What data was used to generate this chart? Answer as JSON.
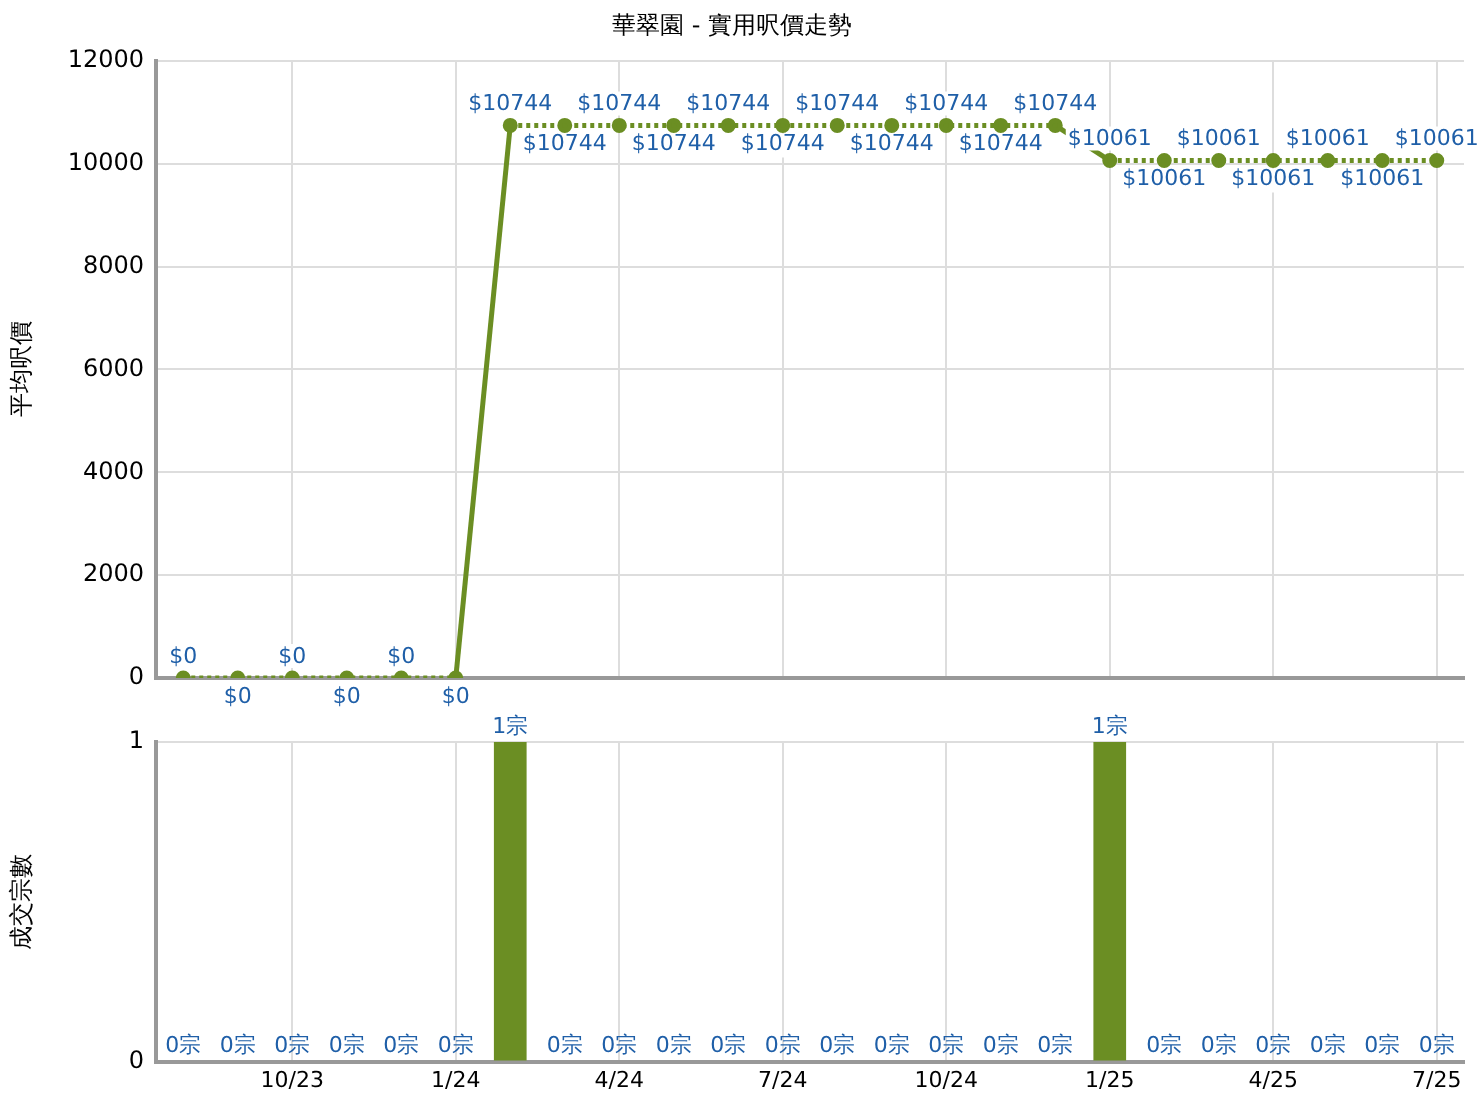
{
  "chart_data": [
    {
      "type": "line",
      "title": "華翠園 - 實用呎價走勢",
      "ylabel": "平均呎價",
      "categories": [
        null,
        null,
        null,
        null,
        null,
        null,
        null,
        null,
        null,
        null,
        null,
        null,
        null,
        null,
        null,
        null,
        null,
        null,
        null,
        null,
        null,
        null,
        null,
        null
      ],
      "series": [
        {
          "color": "#6b8e23",
          "values": [
            0,
            0,
            0,
            0,
            0,
            0,
            10744,
            10744,
            10744,
            10744,
            10744,
            10744,
            10744,
            10744,
            10744,
            10744,
            10744,
            10061,
            10061,
            10061,
            10061,
            10061,
            10061,
            10061
          ],
          "value_labels": [
            "$0",
            "$0",
            "$0",
            "$0",
            "$0",
            "$0",
            "$10744",
            "$10744",
            "$10744",
            "$10744",
            "$10744",
            "$10744",
            "$10744",
            "$10744",
            "$10744",
            "$10744",
            "$10744",
            "$10061",
            "$10061",
            "$10061",
            "$10061",
            "$10061",
            "$10061",
            "$10061"
          ]
        }
      ],
      "ylim": [
        0,
        12000
      ],
      "yticks": [
        0,
        2000,
        4000,
        6000,
        8000,
        10000,
        12000
      ],
      "grid": true,
      "marker": "circle",
      "line_style": "dotted",
      "legend": false
    },
    {
      "type": "bar",
      "ylabel": "成交宗數",
      "categories": [
        null,
        null,
        "10/23",
        null,
        null,
        "1/24",
        null,
        null,
        "4/24",
        null,
        null,
        "7/24",
        null,
        null,
        "10/24",
        null,
        null,
        "1/25",
        null,
        null,
        "4/25",
        null,
        null,
        "7/25"
      ],
      "series": [
        {
          "color": "#6b8e23",
          "values": [
            0,
            0,
            0,
            0,
            0,
            0,
            1,
            0,
            0,
            0,
            0,
            0,
            0,
            0,
            0,
            0,
            0,
            1,
            0,
            0,
            0,
            0,
            0,
            0
          ],
          "value_labels": [
            "0宗",
            "0宗",
            "0宗",
            "0宗",
            "0宗",
            "0宗",
            "1宗",
            "0宗",
            "0宗",
            "0宗",
            "0宗",
            "0宗",
            "0宗",
            "0宗",
            "0宗",
            "0宗",
            "0宗",
            "1宗",
            "0宗",
            "0宗",
            "0宗",
            "0宗",
            "0宗",
            "0宗"
          ]
        }
      ],
      "ylim": [
        0,
        1
      ],
      "yticks": [
        0,
        1
      ],
      "grid": true,
      "legend": false
    }
  ]
}
